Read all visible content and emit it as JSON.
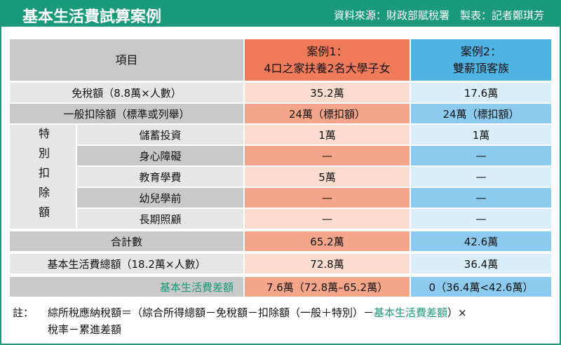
{
  "header": {
    "title": "基本生活費試算案例",
    "source": "資料來源：財政部賦稅署　製表：記者鄭琪芳"
  },
  "table": {
    "header": [
      "項目",
      [
        "案例1：",
        "4口之家扶養2名大學子女"
      ],
      [
        "案例2：",
        "雙薪頂客族"
      ]
    ],
    "special_group": "特別扣除額",
    "rows": [
      [
        "免稅額（8.8萬×人數）",
        "35.2萬",
        "17.6萬"
      ],
      [
        "一般扣除額（標準或列舉）",
        "24萬（標扣額）",
        "24萬（標扣額）"
      ],
      [
        "儲蓄投資",
        "1萬",
        "1萬"
      ],
      [
        "身心障礙",
        "—",
        "—"
      ],
      [
        "教育學費",
        "5萬",
        "—"
      ],
      [
        "幼兒學前",
        "—",
        "—"
      ],
      [
        "長期照顧",
        "—",
        "—"
      ],
      [
        "合計數",
        "65.2萬",
        "42.6萬"
      ],
      [
        "基本生活費總額（18.2萬×人數）",
        "72.8萬",
        "36.4萬"
      ],
      [
        "基本生活費差額",
        "7.6萬（72.8萬–65.2萬）",
        "0（36.4萬<42.6萬）"
      ]
    ]
  },
  "note": {
    "label": "註：",
    "parts": [
      "綜所稅應納稅額＝（綜合所得總額－免稅額－扣除額（一般＋特別）－",
      "基本生活費差額",
      "）×",
      "稅率－累進差額"
    ]
  }
}
